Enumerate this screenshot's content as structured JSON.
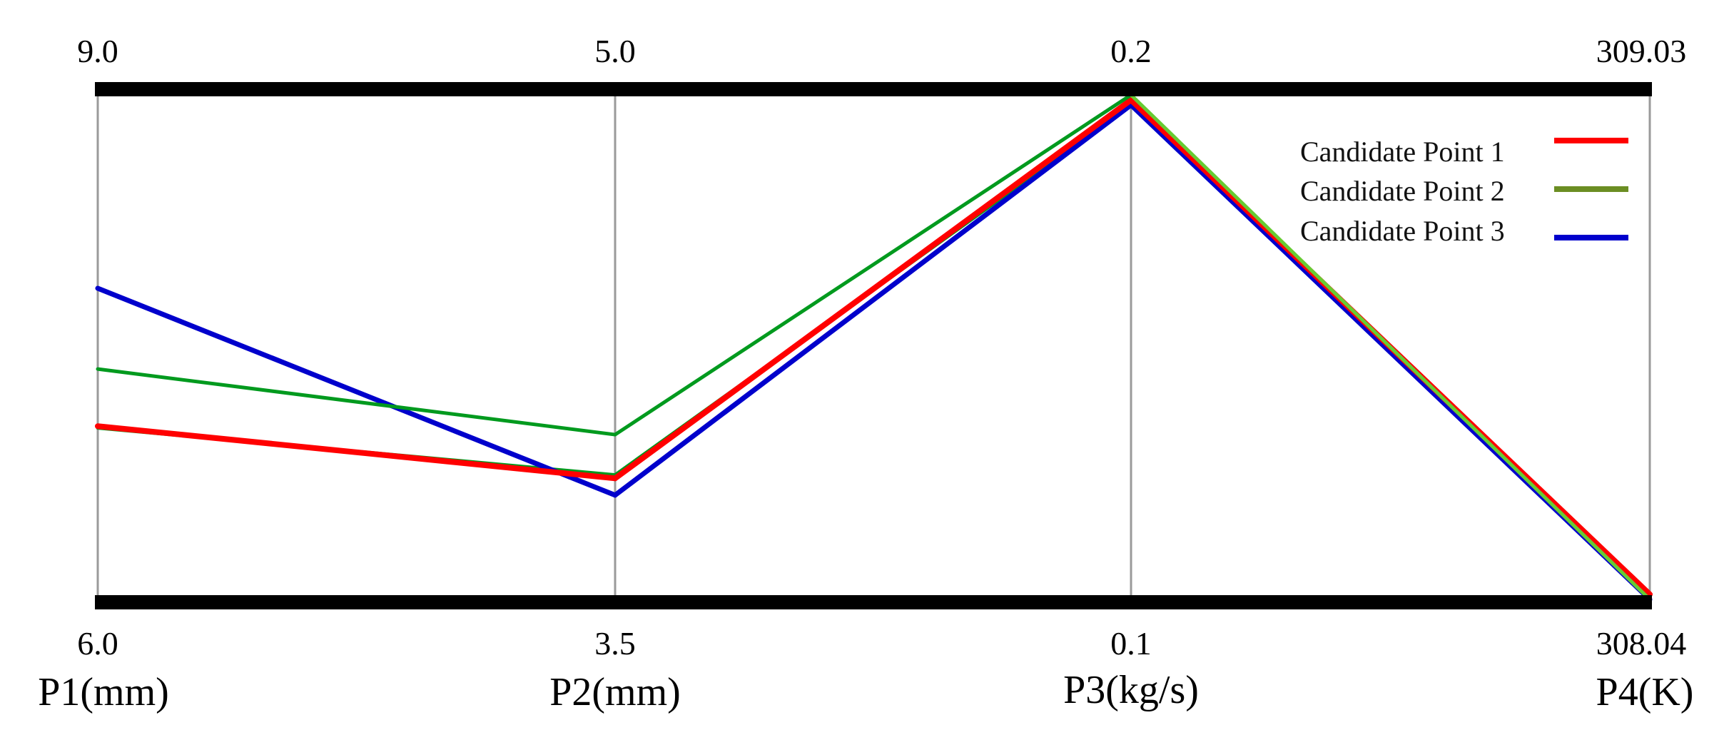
{
  "chart_data": {
    "type": "parallel_coordinates",
    "title": "",
    "axes": [
      {
        "name": "P1(mm)",
        "min": 6.0,
        "max": 9.0,
        "min_label": "6.0",
        "max_label": "9.0"
      },
      {
        "name": "P2(mm)",
        "min": 3.5,
        "max": 5.0,
        "min_label": "3.5",
        "max_label": "5.0"
      },
      {
        "name": "P3(kg/s)",
        "min": 0.1,
        "max": 0.2,
        "min_label": "0.1",
        "max_label": "0.2"
      },
      {
        "name": "P4(K)",
        "min": 308.04,
        "max": 309.03,
        "min_label": "308.04",
        "max_label": "309.03"
      }
    ],
    "series": [
      {
        "name": "Candidate Point 1",
        "color": "#ff0000",
        "values": [
          7.03,
          3.86,
          0.199,
          308.05
        ]
      },
      {
        "name": "Candidate Point 2",
        "color": "#6b8e23",
        "line_colors": [
          "#009a1e",
          "#009a1e",
          "#66cc33"
        ],
        "values": [
          7.37,
          3.99,
          0.2,
          308.04
        ]
      },
      {
        "name": "Candidate Point 3",
        "color": "#0000cc",
        "values": [
          7.85,
          3.81,
          0.198,
          308.04
        ]
      }
    ],
    "extra_lines": [
      {
        "color": "#009a1e",
        "values": [
          7.02,
          3.87,
          0.198,
          308.04
        ]
      }
    ],
    "legend_position": "upper-right",
    "grid": false
  },
  "legend": {
    "items": [
      {
        "label": "Candidate Point 1",
        "color": "#ff0000"
      },
      {
        "label": "Candidate Point 2",
        "color": "#6b8e23"
      },
      {
        "label": "Candidate Point 3",
        "color": "#0000cc"
      }
    ]
  }
}
